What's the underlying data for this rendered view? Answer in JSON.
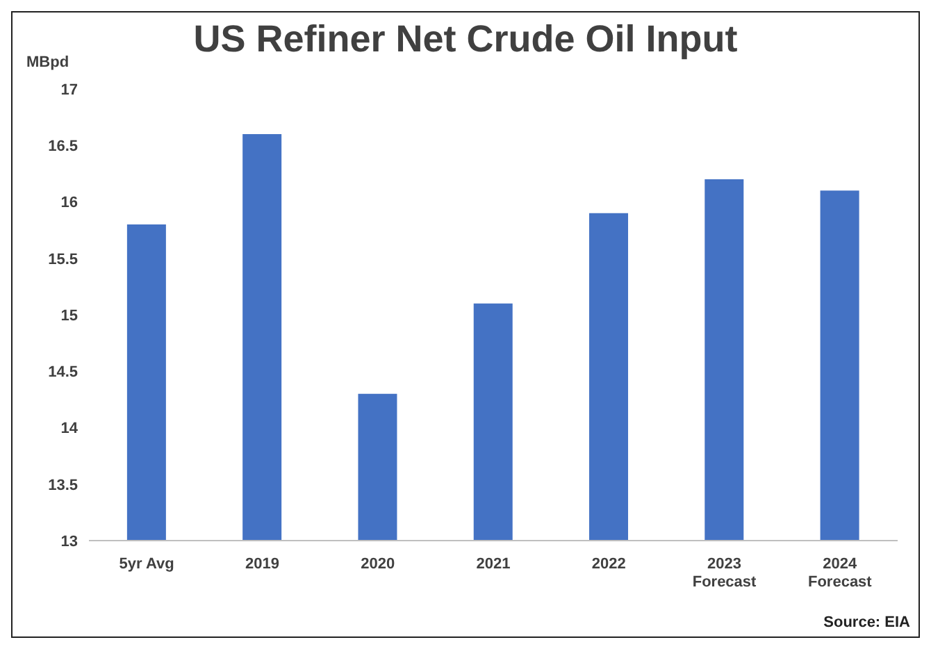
{
  "chart_data": {
    "type": "bar",
    "title": "US Refiner Net Crude Oil Input",
    "ylabel": "MBpd",
    "categories": [
      "5yr Avg",
      "2019",
      "2020",
      "2021",
      "2022",
      "2023\nForecast",
      "2024\nForecast"
    ],
    "values": [
      15.8,
      16.6,
      14.3,
      15.1,
      15.9,
      16.2,
      16.1
    ],
    "color": "#4472c4",
    "ylim": [
      13,
      17
    ],
    "yticks": [
      13,
      13.5,
      14,
      14.5,
      15,
      15.5,
      16,
      16.5,
      17
    ],
    "grid": false,
    "annotations": [
      "Source: EIA"
    ]
  }
}
